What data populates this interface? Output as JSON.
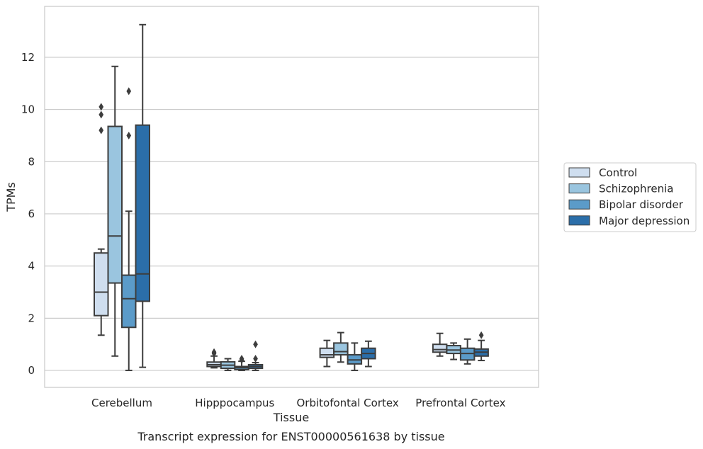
{
  "chart_data": {
    "type": "box",
    "xlabel": "Tissue",
    "ylabel": "TPMs",
    "caption": "Transcript expression for ENST00000561638 by tissue",
    "ylim": [
      -0.65,
      13.95
    ],
    "yticks": [
      0,
      2,
      4,
      6,
      8,
      10,
      12
    ],
    "grid": true,
    "legend_position": "right",
    "categories": [
      "Cerebellum",
      "Hipppocampus",
      "Orbitofontal Cortex",
      "Prefrontal Cortex"
    ],
    "series": [
      {
        "name": "Control",
        "color": "#cfdeef",
        "boxes": [
          {
            "q1": 2.1,
            "median": 3.0,
            "q3": 4.5,
            "whisker_low": 1.35,
            "whisker_high": 4.65,
            "outliers": [
              9.2,
              9.8,
              10.1
            ]
          },
          {
            "q1": 0.15,
            "median": 0.22,
            "q3": 0.32,
            "whisker_low": 0.1,
            "whisker_high": 0.55,
            "outliers": [
              0.65,
              0.7
            ]
          },
          {
            "q1": 0.5,
            "median": 0.6,
            "q3": 0.85,
            "whisker_low": 0.15,
            "whisker_high": 1.15,
            "outliers": []
          },
          {
            "q1": 0.7,
            "median": 0.8,
            "q3": 1.0,
            "whisker_low": 0.55,
            "whisker_high": 1.42,
            "outliers": []
          }
        ]
      },
      {
        "name": "Schizophrenia",
        "color": "#9ac5df",
        "boxes": [
          {
            "q1": 3.35,
            "median": 5.15,
            "q3": 9.35,
            "whisker_low": 0.55,
            "whisker_high": 11.65,
            "outliers": []
          },
          {
            "q1": 0.08,
            "median": 0.2,
            "q3": 0.33,
            "whisker_low": 0.0,
            "whisker_high": 0.45,
            "outliers": []
          },
          {
            "q1": 0.6,
            "median": 0.72,
            "q3": 1.05,
            "whisker_low": 0.32,
            "whisker_high": 1.45,
            "outliers": []
          },
          {
            "q1": 0.65,
            "median": 0.78,
            "q3": 0.95,
            "whisker_low": 0.42,
            "whisker_high": 1.05,
            "outliers": []
          }
        ]
      },
      {
        "name": "Bipolar disorder",
        "color": "#5b9bc9",
        "boxes": [
          {
            "q1": 1.65,
            "median": 2.75,
            "q3": 3.65,
            "whisker_low": 0.0,
            "whisker_high": 6.1,
            "outliers": [
              9.0,
              10.7
            ]
          },
          {
            "q1": 0.03,
            "median": 0.1,
            "q3": 0.15,
            "whisker_low": 0.0,
            "whisker_high": 0.35,
            "outliers": [
              0.4,
              0.45
            ]
          },
          {
            "q1": 0.25,
            "median": 0.4,
            "q3": 0.6,
            "whisker_low": 0.0,
            "whisker_high": 1.05,
            "outliers": []
          },
          {
            "q1": 0.4,
            "median": 0.65,
            "q3": 0.85,
            "whisker_low": 0.25,
            "whisker_high": 1.2,
            "outliers": []
          }
        ]
      },
      {
        "name": "Major depression",
        "color": "#2b6ea9",
        "boxes": [
          {
            "q1": 2.65,
            "median": 3.7,
            "q3": 9.4,
            "whisker_low": 0.12,
            "whisker_high": 13.25,
            "outliers": []
          },
          {
            "q1": 0.08,
            "median": 0.15,
            "q3": 0.22,
            "whisker_low": 0.0,
            "whisker_high": 0.3,
            "outliers": [
              0.45,
              1.0
            ]
          },
          {
            "q1": 0.45,
            "median": 0.65,
            "q3": 0.85,
            "whisker_low": 0.15,
            "whisker_high": 1.12,
            "outliers": []
          },
          {
            "q1": 0.55,
            "median": 0.7,
            "q3": 0.82,
            "whisker_low": 0.38,
            "whisker_high": 1.15,
            "outliers": [
              1.35
            ]
          }
        ]
      }
    ]
  }
}
